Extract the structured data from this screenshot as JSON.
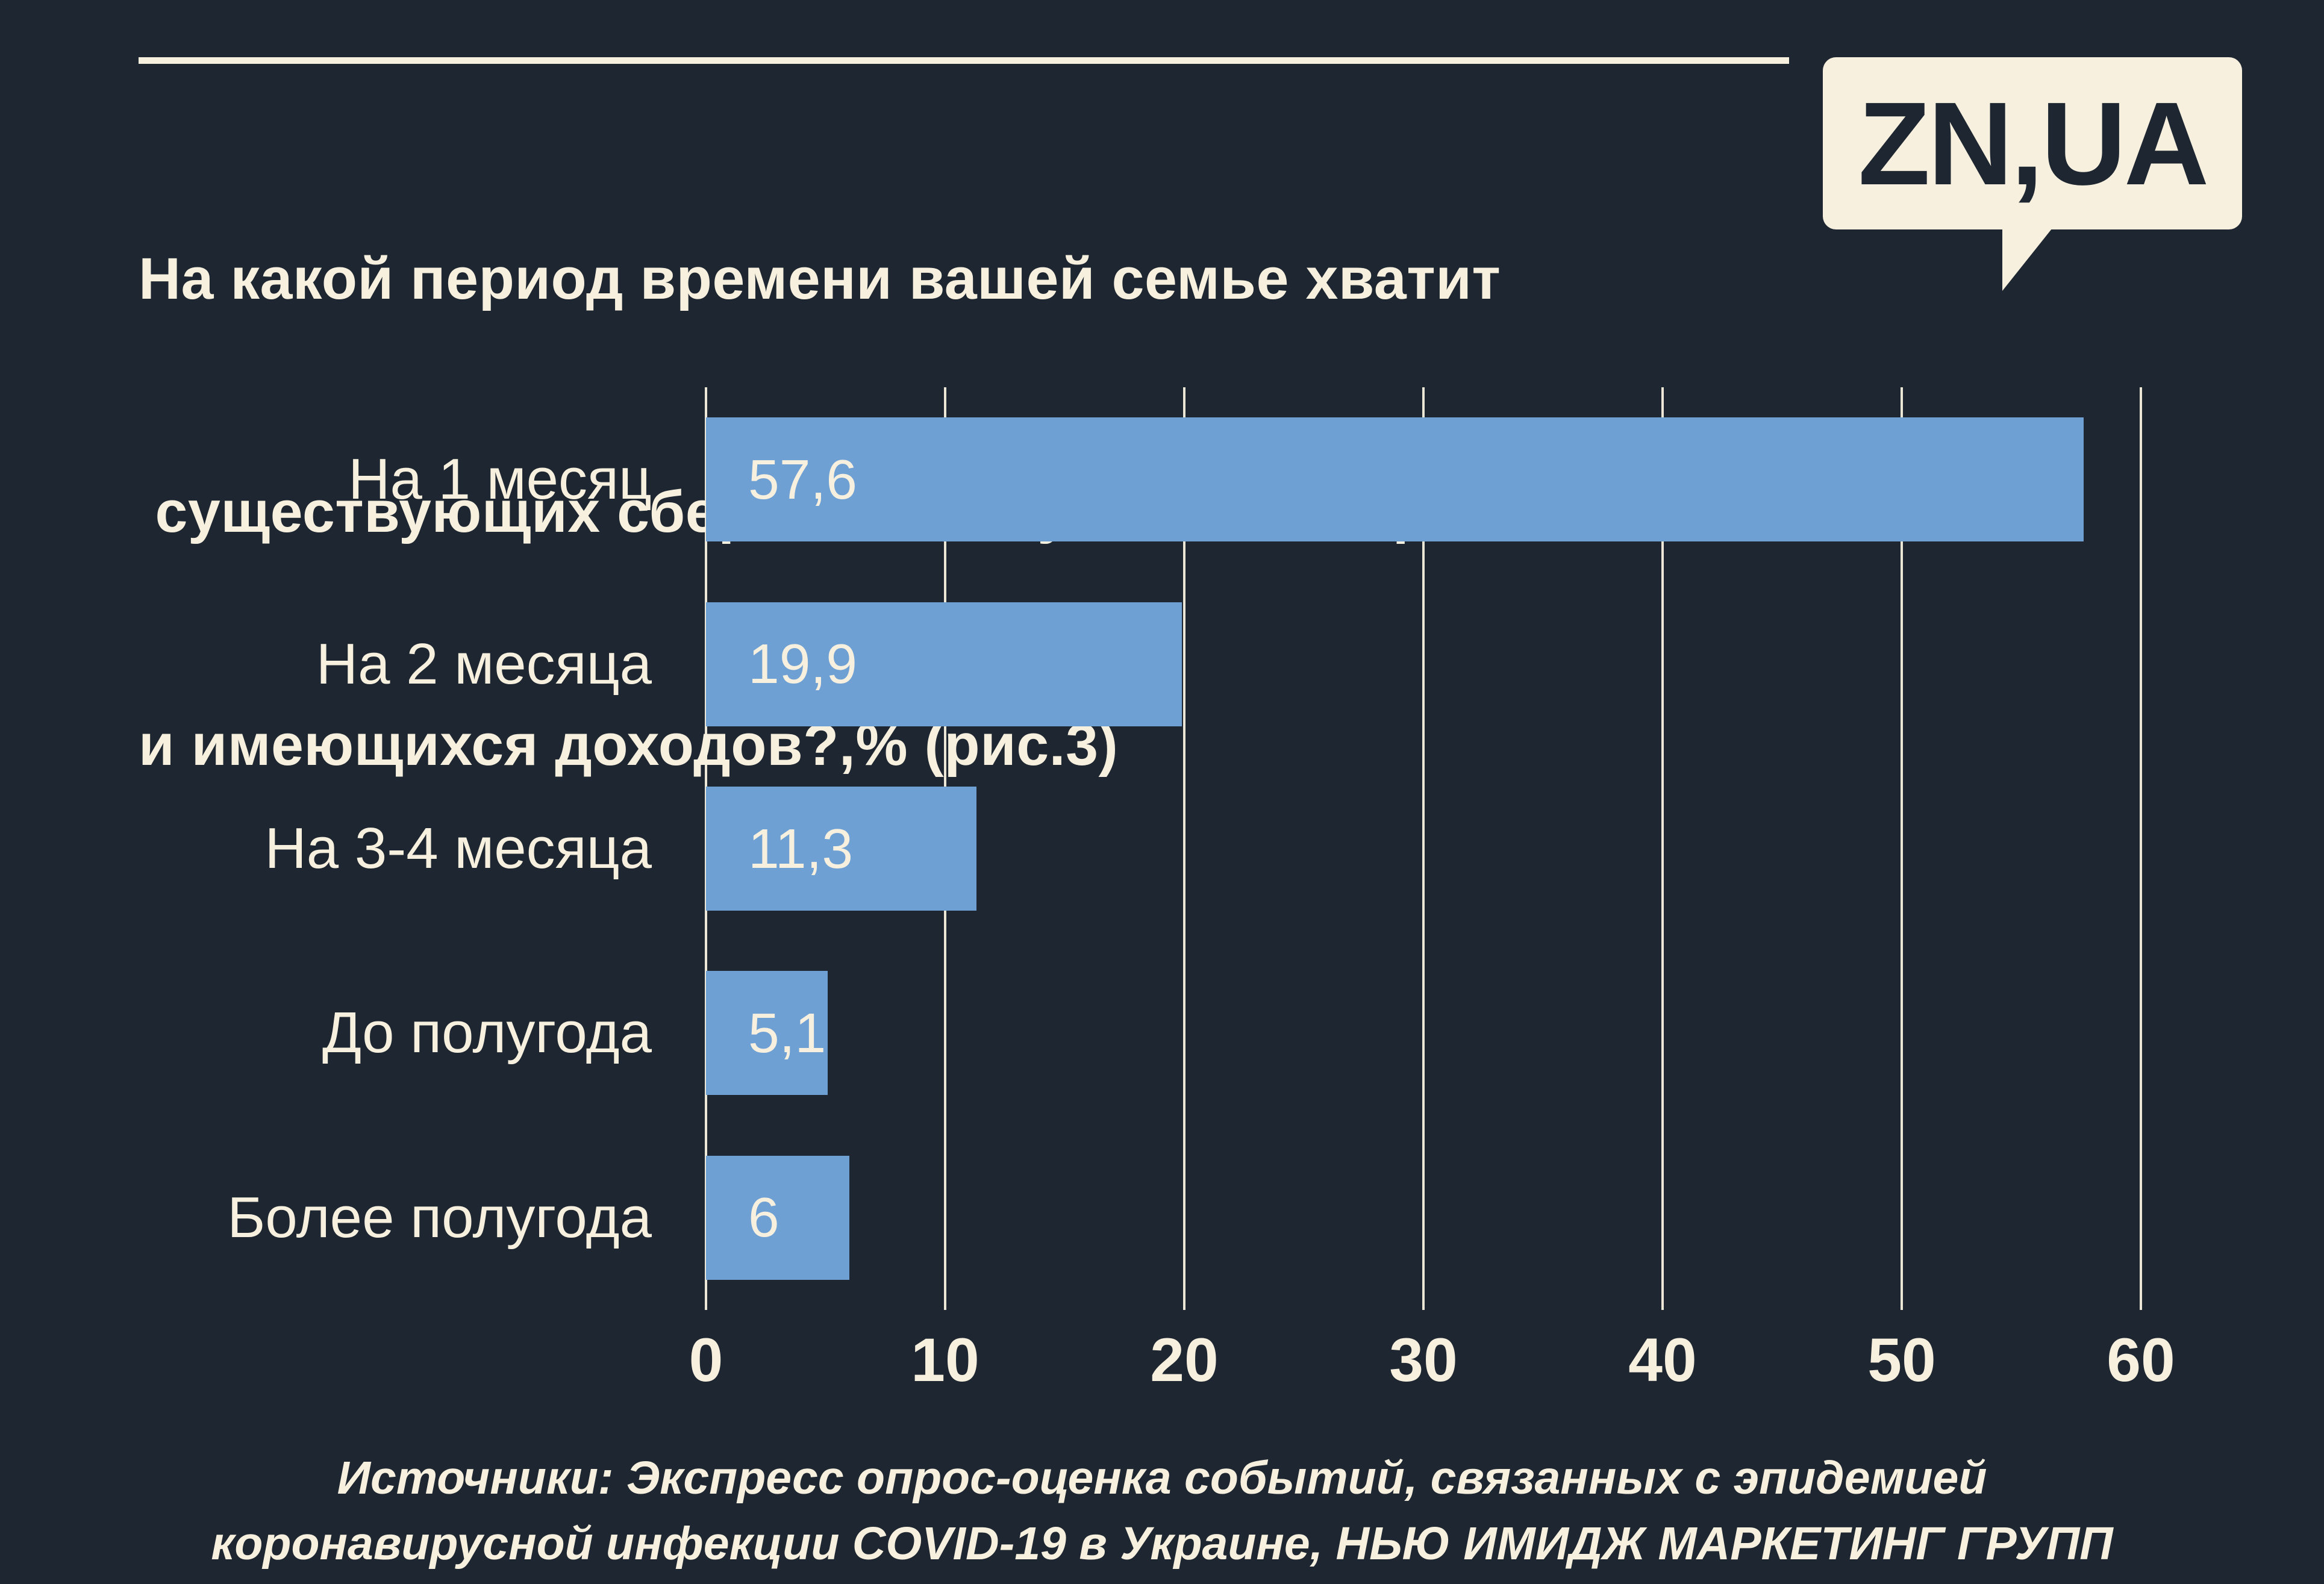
{
  "page": {
    "background": "#1e2731",
    "accent": "#f7f0df",
    "bar_color": "#6fa0d4"
  },
  "header": {
    "title_lines": [
      "На какой период времени вашей семье хватит",
      " существующих сбережений в условиях карантина",
      "и имеющихся доходов?,% (рис.3)"
    ],
    "logo_text": "ZN,UA"
  },
  "chart_data": {
    "type": "bar",
    "orientation": "horizontal",
    "title": "На какой период времени вашей семье хватит существующих сбережений в условиях карантина и имеющихся доходов?,% (рис.3)",
    "categories": [
      "На 1 месяц",
      "На 2 месяца",
      "На 3-4 месяца",
      "До полугода",
      "Более полугода"
    ],
    "values": [
      57.6,
      19.9,
      11.3,
      5.1,
      6
    ],
    "value_labels": [
      "57,6",
      "19,9",
      "11,3",
      "5,1",
      "6"
    ],
    "x_ticks": [
      "0",
      "10",
      "20",
      "30",
      "40",
      "50",
      "60"
    ],
    "xlim": [
      0,
      60
    ],
    "grid": true,
    "legend": false,
    "bar_color": "#6fa0d4"
  },
  "footer": {
    "source_lines": [
      "Источники: Экспресс опрос-оценка событий, связанных с эпидемией",
      "коронавирусной инфекции COVID-19 в Украине, НЬЮ ИМИДЖ МАРКЕТИНГ ГРУПП"
    ]
  }
}
